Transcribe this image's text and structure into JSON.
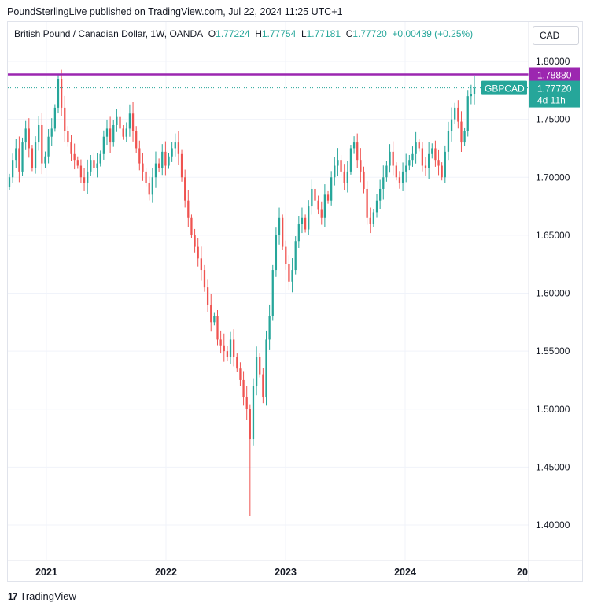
{
  "header": {
    "published": "PoundSterlingLive published on TradingView.com, Jul 22, 2024 11:25 UTC+1"
  },
  "legend": {
    "title": "British Pound / Canadian Dollar, 1W, OANDA",
    "o_label": "O",
    "o_value": "1.77224",
    "h_label": "H",
    "h_value": "1.77754",
    "l_label": "L",
    "l_value": "1.77181",
    "c_label": "C",
    "c_value": "1.77720",
    "change": "+0.00439 (+0.25%)"
  },
  "currency": "CAD",
  "footer": {
    "logo_text": "TradingView",
    "logo_mark": "17"
  },
  "colors": {
    "up": "#26a69a",
    "down": "#ef5350",
    "level_line": "#9c27b0",
    "grid": "#f0f3fa"
  },
  "chart_data": {
    "type": "candlestick",
    "symbol": "GBPCAD",
    "interval": "1W",
    "ylim": [
      1.37,
      1.82
    ],
    "y_ticks": [
      "1.80000",
      "1.75000",
      "1.70000",
      "1.65000",
      "1.60000",
      "1.55000",
      "1.50000",
      "1.45000",
      "1.40000"
    ],
    "x_ticks": [
      "2021",
      "2022",
      "2023",
      "2024",
      "20"
    ],
    "horizontal_level": {
      "value": 1.7888,
      "label": "1.78880"
    },
    "last_price": {
      "value": 1.7772,
      "label": "1.77720",
      "countdown": "4d 11h",
      "symbol_label": "GBPCAD"
    },
    "grid": true,
    "closes": [
      1.7,
      1.715,
      1.725,
      1.705,
      1.73,
      1.742,
      1.725,
      1.708,
      1.73,
      1.745,
      1.712,
      1.718,
      1.735,
      1.742,
      1.76,
      1.785,
      1.76,
      1.74,
      1.73,
      1.72,
      1.715,
      1.71,
      1.7,
      1.695,
      1.705,
      1.715,
      1.708,
      1.712,
      1.72,
      1.735,
      1.742,
      1.73,
      1.745,
      1.752,
      1.742,
      1.735,
      1.742,
      1.755,
      1.74,
      1.725,
      1.712,
      1.705,
      1.695,
      1.685,
      1.7,
      1.712,
      1.708,
      1.722,
      1.71,
      1.718,
      1.725,
      1.73,
      1.72,
      1.7,
      1.68,
      1.665,
      1.65,
      1.64,
      1.63,
      1.62,
      1.605,
      1.59,
      1.575,
      1.58,
      1.56,
      1.555,
      1.55,
      1.545,
      1.56,
      1.545,
      1.535,
      1.525,
      1.51,
      1.5,
      1.474,
      1.52,
      1.545,
      1.53,
      1.51,
      1.56,
      1.58,
      1.62,
      1.65,
      1.665,
      1.64,
      1.625,
      1.61,
      1.62,
      1.645,
      1.66,
      1.665,
      1.655,
      1.675,
      1.69,
      1.68,
      1.672,
      1.665,
      1.685,
      1.68,
      1.7,
      1.71,
      1.715,
      1.705,
      1.695,
      1.705,
      1.725,
      1.73,
      1.715,
      1.705,
      1.69,
      1.665,
      1.66,
      1.67,
      1.68,
      1.69,
      1.7,
      1.71,
      1.722,
      1.71,
      1.7,
      1.695,
      1.705,
      1.71,
      1.715,
      1.72,
      1.73,
      1.725,
      1.71,
      1.708,
      1.72,
      1.725,
      1.715,
      1.71,
      1.7,
      1.722,
      1.74,
      1.75,
      1.76,
      1.748,
      1.73,
      1.74,
      1.77,
      1.772,
      1.7772
    ]
  }
}
